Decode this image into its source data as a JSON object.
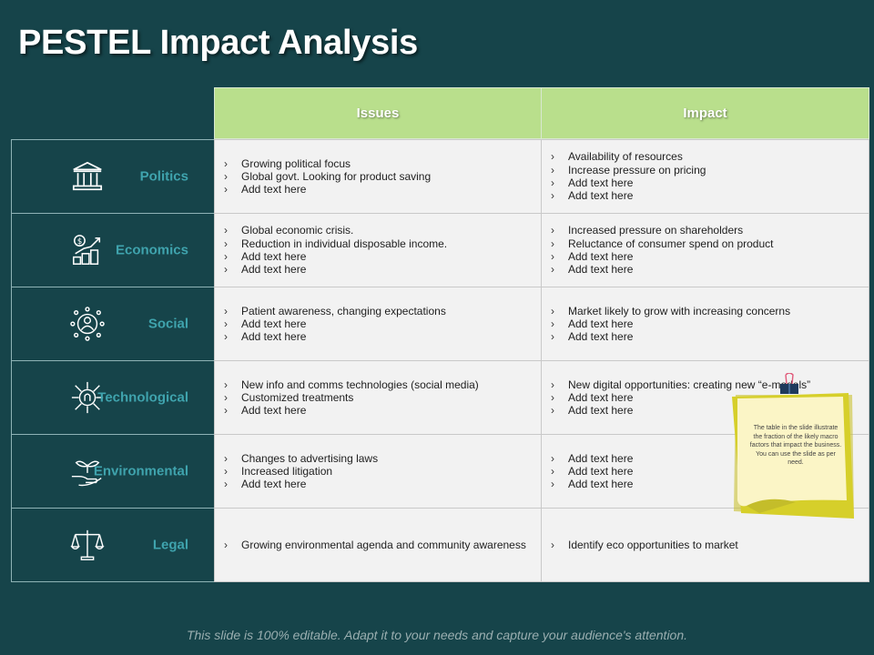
{
  "title": "PESTEL Impact Analysis",
  "headers": {
    "issues": "Issues",
    "impact": "Impact"
  },
  "rows": [
    {
      "label": "Politics",
      "icon": "bank-icon",
      "issues": [
        "Growing political focus",
        "Global govt. Looking for product saving",
        "Add text here"
      ],
      "impact": [
        "Availability of resources",
        "Increase pressure on pricing",
        "Add text here",
        "Add text here"
      ]
    },
    {
      "label": "Economics",
      "icon": "money-growth-icon",
      "issues": [
        "Global economic crisis.",
        "Reduction in individual disposable income.",
        "Add text here",
        "Add text here"
      ],
      "impact": [
        "Increased pressure on shareholders",
        "Reluctance of consumer spend on product",
        "Add text here",
        "Add text here"
      ]
    },
    {
      "label": "Social",
      "icon": "people-network-icon",
      "issues": [
        "Patient awareness, changing expectations",
        "Add text here",
        "Add text here"
      ],
      "impact": [
        "Market likely to grow with increasing concerns",
        "Add text here",
        "Add text here"
      ]
    },
    {
      "label": "Technological",
      "icon": "circuit-bulb-icon",
      "issues": [
        "New info and comms technologies (social media)",
        "Customized treatments",
        "Add text here"
      ],
      "impact": [
        "New digital opportunities: creating new “e-models”",
        "Add text here",
        "Add text here"
      ]
    },
    {
      "label": "Environmental",
      "icon": "hand-plant-icon",
      "issues": [
        "Changes to advertising laws",
        "Increased litigation",
        "Add text here"
      ],
      "impact": [
        "Add text here",
        "Add text here",
        "Add text here"
      ]
    },
    {
      "label": "Legal",
      "icon": "justice-scale-icon",
      "issues": [
        "Growing environmental agenda and community awareness"
      ],
      "impact": [
        "Identify eco opportunities to market"
      ]
    }
  ],
  "sticky_note": {
    "text": "The table in the slide illustrate the fraction of the likely macro factors that impact the business. You can use the slide as per need."
  },
  "footer": "This slide is 100% editable. Adapt it to your needs and capture your audience's attention.",
  "colors": {
    "background": "#16444a",
    "header_green": "#b9df8c",
    "label_teal": "#3fa3ad",
    "cell_bg": "#f2f2f2",
    "note_yellow": "#d6cf2a"
  }
}
